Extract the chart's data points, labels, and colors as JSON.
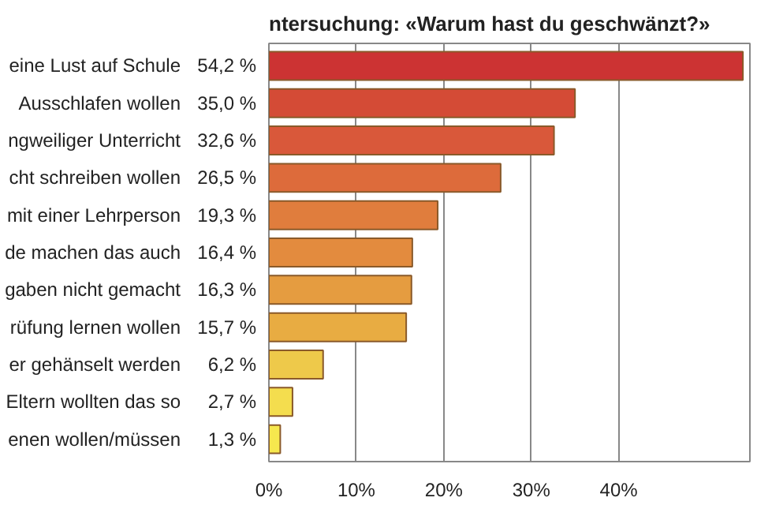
{
  "chart_data": {
    "type": "bar",
    "orientation": "horizontal",
    "title": "ntersuchung: «Warum hast du geschwänzt?»",
    "categories": [
      "eine Lust auf Schule",
      "Ausschlafen wollen",
      "ngweiliger Unterricht",
      "cht schreiben wollen",
      "mit einer Lehrperson",
      "de machen das auch",
      "gaben nicht gemacht",
      "rüfung lernen wollen",
      "er gehänselt werden",
      "Eltern wollten das so",
      "enen wollen/müssen"
    ],
    "values": [
      54.2,
      35.0,
      32.6,
      26.5,
      19.3,
      16.4,
      16.3,
      15.7,
      6.2,
      2.7,
      1.3
    ],
    "value_labels": [
      "54,2 %",
      "35,0 %",
      "32,6 %",
      "26,5 %",
      "19,3 %",
      "16,4 %",
      "16,3 %",
      "15,7 %",
      "6,2 %",
      "2,7 %",
      "1,3 %"
    ],
    "colors": [
      "#cc3333",
      "#d44b36",
      "#d9583a",
      "#dd6b3b",
      "#e07d3d",
      "#e38b3e",
      "#e59c40",
      "#e8ac42",
      "#eec94a",
      "#f4dd4e",
      "#f6e84e"
    ],
    "xlim": [
      0,
      55
    ],
    "xticks": [
      {
        "value": 0,
        "label": "0%"
      },
      {
        "value": 10,
        "label": "10%"
      },
      {
        "value": 20,
        "label": "20%"
      },
      {
        "value": 30,
        "label": "30%"
      },
      {
        "value": 40,
        "label": "40%"
      }
    ],
    "grid": "x"
  }
}
